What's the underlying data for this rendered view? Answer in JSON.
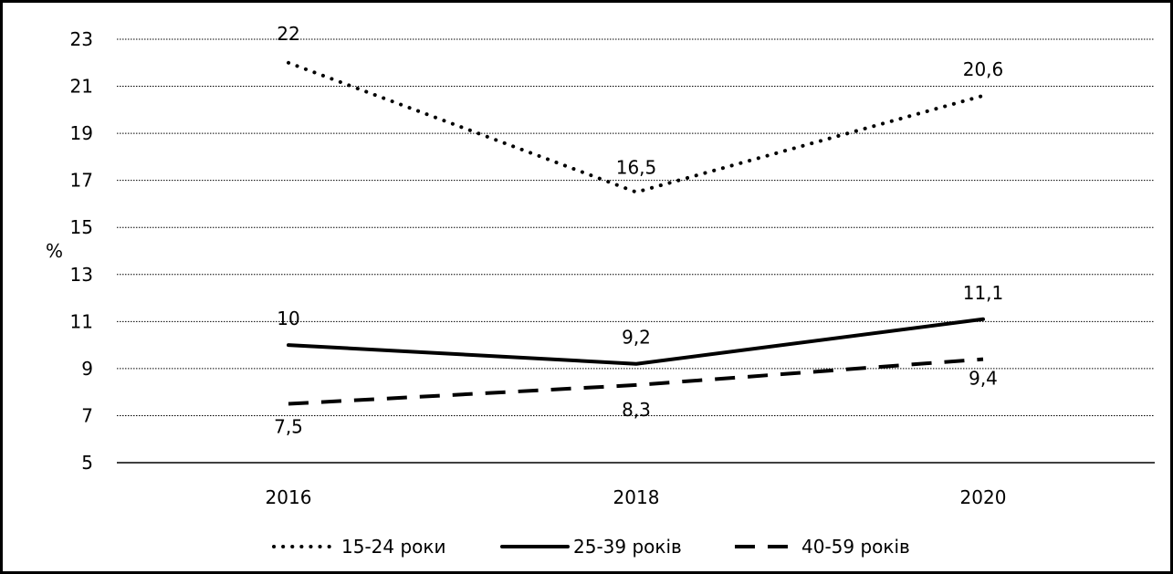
{
  "chart_data": {
    "type": "line",
    "title": "",
    "xlabel": "",
    "ylabel": "%",
    "categories": [
      "2016",
      "2018",
      "2020"
    ],
    "ylim": [
      5,
      23
    ],
    "yticks": [
      "5",
      "7",
      "9",
      "11",
      "13",
      "15",
      "17",
      "19",
      "21",
      "23"
    ],
    "grid": "horizontal-dotted",
    "legend_position": "bottom",
    "series": [
      {
        "name": "15-24 роки",
        "values": [
          22,
          16.5,
          20.6
        ],
        "labels": [
          "22",
          "16,5",
          "20,6"
        ],
        "line_style": "dotted",
        "color": "#000000"
      },
      {
        "name": "25-39 років",
        "values": [
          10,
          9.2,
          11.1
        ],
        "labels": [
          "10",
          "9,2",
          "11,1"
        ],
        "line_style": "solid",
        "color": "#000000"
      },
      {
        "name": "40-59 років",
        "values": [
          7.5,
          8.3,
          9.4
        ],
        "labels": [
          "7,5",
          "8,3",
          "9,4"
        ],
        "line_style": "dashed",
        "color": "#000000"
      }
    ]
  }
}
